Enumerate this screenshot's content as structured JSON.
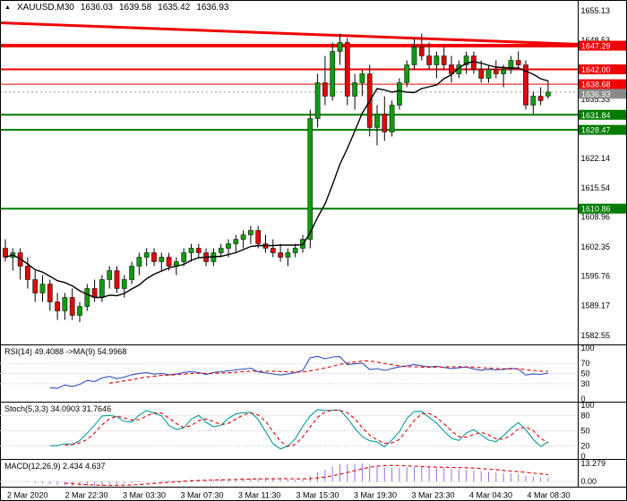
{
  "header": {
    "icon": "▲",
    "symbol": "XAUUSD,M30",
    "open": "1636.03",
    "high": "1639.58",
    "low": "1635.42",
    "close": "1636.93"
  },
  "colors": {
    "up": "#0f9c0f",
    "down": "#dc0a0a",
    "wick": "#000000",
    "ma": "#000000",
    "resistance": "#f00000",
    "support": "#007c00",
    "rsi_line": "#2f4fc0",
    "stoch_line": "#0a9a9a",
    "signal": "#e00000",
    "macd_hist": "#a06ede",
    "grid": "#c4c4c4",
    "label_text": "#ffffff",
    "current_bg": "#8a8a8a"
  },
  "main": {
    "ticks": [
      "1655.13",
      "1648.53",
      "1641.93",
      "1635.33",
      "1628.74",
      "1622.14",
      "1615.54",
      "1608.96",
      "1602.35",
      "1595.76",
      "1589.17",
      "1582.55"
    ],
    "levels": [
      {
        "price": 1647.29,
        "label": "1647.29",
        "color": "resistance",
        "width": 4
      },
      {
        "price": 1642.0,
        "label": "1642.00",
        "color": "resistance",
        "width": 2
      },
      {
        "price": 1638.68,
        "label": "1638.68",
        "color": "resistance",
        "width": 1
      },
      {
        "price": 1631.84,
        "label": "1631.84",
        "color": "support",
        "width": 2
      },
      {
        "price": 1628.47,
        "label": "1628.47",
        "color": "support",
        "width": 2
      },
      {
        "price": 1610.86,
        "label": "1610.86",
        "color": "support",
        "width": 2
      }
    ],
    "trendline": {
      "price_start": 1652.4,
      "price_end": 1647.6,
      "width": 3
    },
    "current": {
      "price": 1636.93,
      "label": "1636.93"
    }
  },
  "time_axis": {
    "labels": [
      "2 Mar 2020",
      "2 Mar 22:30",
      "3 Mar 03:30",
      "3 Mar 07:30",
      "3 Mar 11:30",
      "3 Mar 15:30",
      "3 Mar 19:30",
      "3 Mar 23:30",
      "4 Mar 04:30",
      "4 Mar 08:30"
    ]
  },
  "indicators": {
    "rsi": {
      "label": "RSI(14) 49.4088  ->MA(9) 54.9968",
      "ticks": [
        {
          "label": "100",
          "v": 100
        },
        {
          "label": "70",
          "v": 70
        },
        {
          "label": "50",
          "v": 50
        },
        {
          "label": "30",
          "v": 30
        },
        {
          "label": "0",
          "v": 0
        }
      ],
      "grid": [
        70,
        50,
        30
      ]
    },
    "stoch": {
      "label": "Stoch(5,3,3) 34.0903 31.7646",
      "ticks": [
        {
          "label": "100",
          "v": 100
        },
        {
          "label": "80",
          "v": 80
        },
        {
          "label": "50",
          "v": 50
        },
        {
          "label": "20",
          "v": 20
        },
        {
          "label": "0",
          "v": 0
        }
      ],
      "grid": [
        80,
        50,
        20
      ]
    },
    "macd": {
      "label": "MACD(12,26,9) 2.434 4.637",
      "ticks": [
        {
          "label": "13.279",
          "v": 13.279
        },
        {
          "label": "0.00",
          "v": 0
        }
      ],
      "grid": [
        0
      ],
      "peak": 13.279
    }
  },
  "chart_data": {
    "type": "candlestick",
    "title": "XAUUSD,M30",
    "price_axis_range": [
      1580.3,
      1657.3
    ],
    "ohlc": [
      [
        1602,
        1604,
        1599,
        1600
      ],
      [
        1600,
        1602,
        1597,
        1601
      ],
      [
        1601,
        1602,
        1595,
        1598
      ],
      [
        1598,
        1600,
        1593,
        1595
      ],
      [
        1595,
        1597,
        1590,
        1592
      ],
      [
        1592,
        1596,
        1590,
        1594
      ],
      [
        1594,
        1595,
        1588,
        1590
      ],
      [
        1590,
        1592,
        1586,
        1588
      ],
      [
        1588,
        1592,
        1586,
        1591
      ],
      [
        1591,
        1593,
        1586,
        1587
      ],
      [
        1587,
        1590,
        1585.5,
        1589
      ],
      [
        1589,
        1594,
        1588,
        1593
      ],
      [
        1593,
        1595,
        1590,
        1591
      ],
      [
        1591,
        1596,
        1590,
        1595
      ],
      [
        1595,
        1598,
        1593,
        1597
      ],
      [
        1597,
        1598,
        1592,
        1593
      ],
      [
        1593,
        1596,
        1591,
        1595
      ],
      [
        1595,
        1599,
        1594,
        1598
      ],
      [
        1598,
        1601,
        1596,
        1600
      ],
      [
        1600,
        1602,
        1598,
        1601
      ],
      [
        1601,
        1602,
        1598,
        1599
      ],
      [
        1599,
        1601,
        1597,
        1600
      ],
      [
        1600,
        1601,
        1597,
        1598
      ],
      [
        1598,
        1600,
        1596,
        1599
      ],
      [
        1599,
        1602,
        1598,
        1601
      ],
      [
        1601,
        1603,
        1599,
        1602
      ],
      [
        1602,
        1603,
        1600,
        1601
      ],
      [
        1601,
        1602,
        1598,
        1599
      ],
      [
        1599,
        1602,
        1598,
        1601
      ],
      [
        1601,
        1603,
        1600,
        1602
      ],
      [
        1602,
        1604,
        1600,
        1603
      ],
      [
        1603,
        1605,
        1601,
        1604
      ],
      [
        1604,
        1606,
        1602,
        1605
      ],
      [
        1605,
        1607,
        1603,
        1606
      ],
      [
        1606,
        1607,
        1602,
        1603
      ],
      [
        1603,
        1605,
        1601,
        1602
      ],
      [
        1602,
        1604,
        1600,
        1601
      ],
      [
        1601,
        1603,
        1599,
        1600
      ],
      [
        1600,
        1602,
        1598,
        1601
      ],
      [
        1601,
        1603,
        1600,
        1602
      ],
      [
        1602,
        1605,
        1601,
        1604
      ],
      [
        1604,
        1633,
        1602,
        1631
      ],
      [
        1631,
        1641,
        1629,
        1639
      ],
      [
        1639,
        1645,
        1634,
        1636
      ],
      [
        1636,
        1648,
        1635,
        1646
      ],
      [
        1646,
        1650,
        1643,
        1648
      ],
      [
        1648,
        1649,
        1634,
        1636
      ],
      [
        1636,
        1641,
        1633,
        1639
      ],
      [
        1639,
        1642,
        1636,
        1641
      ],
      [
        1641,
        1643,
        1627,
        1629
      ],
      [
        1629,
        1634,
        1625,
        1632
      ],
      [
        1632,
        1636,
        1626,
        1628
      ],
      [
        1628,
        1635,
        1627,
        1634
      ],
      [
        1634,
        1640,
        1633,
        1639
      ],
      [
        1639,
        1644,
        1638,
        1643
      ],
      [
        1643,
        1649,
        1642,
        1647
      ],
      [
        1647,
        1650,
        1644,
        1645
      ],
      [
        1645,
        1648,
        1642,
        1643
      ],
      [
        1643,
        1646,
        1640,
        1645
      ],
      [
        1645,
        1647,
        1642,
        1643
      ],
      [
        1643,
        1645,
        1639,
        1641
      ],
      [
        1641,
        1644,
        1640,
        1643
      ],
      [
        1643,
        1646,
        1641,
        1645
      ],
      [
        1645,
        1646,
        1641,
        1642
      ],
      [
        1642,
        1644,
        1639,
        1640
      ],
      [
        1640,
        1643,
        1639,
        1642
      ],
      [
        1642,
        1644,
        1640,
        1641
      ],
      [
        1641,
        1643,
        1638,
        1642
      ],
      [
        1642,
        1645,
        1641,
        1644
      ],
      [
        1644,
        1646,
        1642,
        1643
      ],
      [
        1643,
        1644,
        1633,
        1634
      ],
      [
        1634,
        1637,
        1632,
        1636
      ],
      [
        1636,
        1638,
        1634,
        1635
      ],
      [
        1636.03,
        1639.58,
        1635.42,
        1636.93
      ]
    ]
  }
}
